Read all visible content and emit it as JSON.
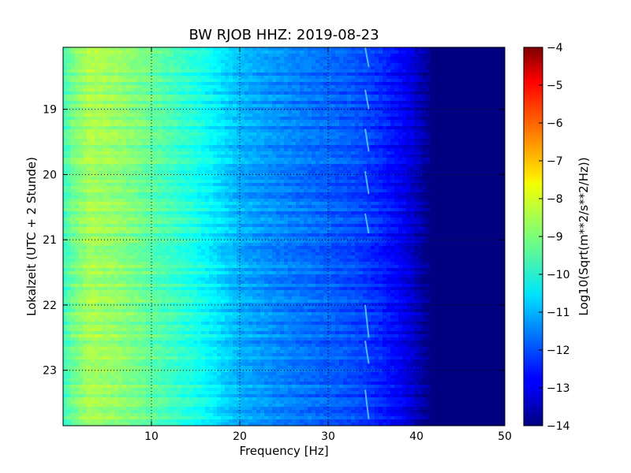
{
  "chart_data": {
    "type": "heatmap",
    "title": "BW RJOB HHZ: 2019-08-23",
    "xlabel": "Frequency [Hz]",
    "ylabel": "Lokalzeit (UTC + 2 Stunde)",
    "colorbar_label": "Log10(Sqrt(m**2/s**2/Hz))",
    "xlim": [
      0,
      50
    ],
    "ylim_hours": [
      18.05,
      23.85
    ],
    "x_ticks": [
      {
        "value": 10,
        "label": "10"
      },
      {
        "value": 20,
        "label": "20"
      },
      {
        "value": 30,
        "label": "30"
      },
      {
        "value": 40,
        "label": "40"
      },
      {
        "value": 50,
        "label": "50"
      }
    ],
    "y_ticks": [
      {
        "value": 19,
        "label": "19"
      },
      {
        "value": 20,
        "label": "20"
      },
      {
        "value": 21,
        "label": "21"
      },
      {
        "value": 22,
        "label": "22"
      },
      {
        "value": 23,
        "label": "23"
      }
    ],
    "color_range": [
      -14,
      -4
    ],
    "colorbar_ticks": [
      {
        "value": -4,
        "label": "−4"
      },
      {
        "value": -5,
        "label": "−5"
      },
      {
        "value": -6,
        "label": "−6"
      },
      {
        "value": -7,
        "label": "−7"
      },
      {
        "value": -8,
        "label": "−8"
      },
      {
        "value": -9,
        "label": "−9"
      },
      {
        "value": -10,
        "label": "−10"
      },
      {
        "value": -11,
        "label": "−11"
      },
      {
        "value": -12,
        "label": "−12"
      },
      {
        "value": -13,
        "label": "−13"
      },
      {
        "value": -14,
        "label": "−14"
      }
    ],
    "colormap": "jet",
    "grid": "dotted",
    "profile": {
      "frequency_hz": [
        0,
        1,
        3,
        6,
        10,
        15,
        18,
        20,
        23,
        27,
        30,
        33,
        36,
        38,
        40,
        41,
        42,
        50
      ],
      "log10_psd": [
        -9.7,
        -9.2,
        -8.6,
        -8.8,
        -9.3,
        -10.0,
        -10.6,
        -11.0,
        -11.3,
        -11.6,
        -11.8,
        -12.0,
        -12.4,
        -12.8,
        -13.3,
        -13.8,
        -14.0,
        -14.0
      ]
    },
    "tonal_line_hz": 34.3
  }
}
